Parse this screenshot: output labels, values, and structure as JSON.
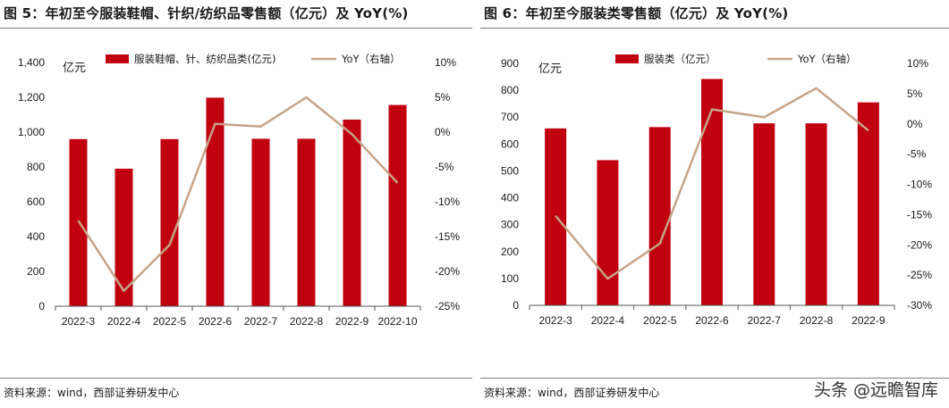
{
  "colors": {
    "bar": "#C0000F",
    "line": "#C6A488",
    "axis": "#555555"
  },
  "watermark": "头条 @远瞻智库",
  "chart_data": [
    {
      "type": "bar",
      "title": "图 5：年初至今服装鞋帽、针织/纺织品零售额（亿元）及 YoY(%)",
      "source": "资料来源：wind，西部证券研发中心",
      "unit": "亿元",
      "categories": [
        "2022-3",
        "2022-4",
        "2022-5",
        "2022-6",
        "2022-7",
        "2022-8",
        "2022-9",
        "2022-10"
      ],
      "series": [
        {
          "name": "服装鞋帽、针、纺织品类(亿元)",
          "type": "bar",
          "axis": "left",
          "values": [
            960,
            790,
            960,
            1198,
            962,
            962,
            1072,
            1156
          ]
        },
        {
          "name": "YoY（右轴）",
          "type": "line",
          "axis": "right",
          "values": [
            -12.7,
            -22.8,
            -16.2,
            1.2,
            0.8,
            5.0,
            -0.3,
            -7.3
          ]
        }
      ],
      "ylim": [
        0,
        1400
      ],
      "yticks": [
        0,
        200,
        400,
        600,
        800,
        1000,
        1200,
        1400
      ],
      "ytick_labels": [
        "0",
        "200",
        "400",
        "600",
        "800",
        "1,000",
        "1,200",
        "1,400"
      ],
      "y2lim": [
        -25,
        10
      ],
      "y2ticks": [
        -25,
        -20,
        -15,
        -10,
        -5,
        0,
        5,
        10
      ],
      "y2tick_labels": [
        "-25%",
        "-20%",
        "-15%",
        "-10%",
        "-5%",
        "0%",
        "5%",
        "10%"
      ],
      "legend": "top"
    },
    {
      "type": "bar",
      "title": "图 6：年初至今服装类零售额（亿元）及 YoY(%)",
      "source": "资料来源：wind，西部证券研发中心",
      "unit": "亿元",
      "categories": [
        "2022-3",
        "2022-4",
        "2022-5",
        "2022-6",
        "2022-7",
        "2022-8",
        "2022-9"
      ],
      "series": [
        {
          "name": "服装类（亿元）",
          "type": "bar",
          "axis": "left",
          "values": [
            658,
            540,
            663,
            842,
            677,
            677,
            755
          ]
        },
        {
          "name": "YoY（右轴）",
          "type": "line",
          "axis": "right",
          "values": [
            -15.2,
            -25.6,
            -19.8,
            2.4,
            1.1,
            5.9,
            -1.1
          ]
        }
      ],
      "ylim": [
        0,
        900
      ],
      "yticks": [
        0,
        100,
        200,
        300,
        400,
        500,
        600,
        700,
        800,
        900
      ],
      "ytick_labels": [
        "0",
        "100",
        "200",
        "300",
        "400",
        "500",
        "600",
        "700",
        "800",
        "900"
      ],
      "y2lim": [
        -30,
        10
      ],
      "y2ticks": [
        -30,
        -25,
        -20,
        -15,
        -10,
        -5,
        0,
        5,
        10
      ],
      "y2tick_labels": [
        "-30%",
        "-25%",
        "-20%",
        "-15%",
        "-10%",
        "-5%",
        "0%",
        "5%",
        "10%"
      ],
      "legend": "top"
    }
  ]
}
